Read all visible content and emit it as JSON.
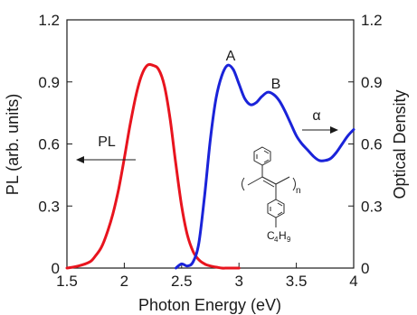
{
  "chart_data": {
    "type": "line",
    "xlabel": "Photon Energy (eV)",
    "ylabel_left": "PL (arb. units)",
    "ylabel_right": "Optical Density",
    "xlim": [
      1.5,
      4.0
    ],
    "ylim_left": [
      0,
      1.2
    ],
    "ylim_right": [
      0,
      1.2
    ],
    "x_ticks": [
      "1.5",
      "2",
      "2.5",
      "3",
      "3.5",
      "4"
    ],
    "x_tick_values": [
      1.5,
      2.0,
      2.5,
      3.0,
      3.5,
      4.0
    ],
    "y_ticks_left": [
      "0",
      "0.3",
      "0.6",
      "0.9",
      "1.2"
    ],
    "y_ticks_right": [
      "0",
      "0.3",
      "0.6",
      "0.9",
      "1.2"
    ],
    "y_tick_values": [
      0,
      0.3,
      0.6,
      0.9,
      1.2
    ],
    "grid": false,
    "series": [
      {
        "name": "PL",
        "axis": "left",
        "color": "#e8141e",
        "x": [
          1.5,
          1.6,
          1.7,
          1.75,
          1.8,
          1.85,
          1.9,
          1.95,
          2.0,
          2.05,
          2.1,
          2.15,
          2.2,
          2.25,
          2.3,
          2.35,
          2.4,
          2.45,
          2.5,
          2.55,
          2.6,
          2.65,
          2.7,
          2.75,
          2.8,
          2.85,
          2.9,
          2.95,
          3.0
        ],
        "y": [
          0.0,
          0.01,
          0.03,
          0.06,
          0.1,
          0.17,
          0.26,
          0.38,
          0.53,
          0.69,
          0.83,
          0.93,
          0.98,
          0.98,
          0.96,
          0.88,
          0.72,
          0.5,
          0.3,
          0.16,
          0.08,
          0.04,
          0.02,
          0.01,
          0.005,
          0.0,
          0.0,
          0.0,
          0.0
        ]
      },
      {
        "name": "Optical Density",
        "axis": "right",
        "color": "#1a23d9",
        "x": [
          2.45,
          2.5,
          2.55,
          2.6,
          2.65,
          2.7,
          2.75,
          2.8,
          2.85,
          2.9,
          2.95,
          3.0,
          3.05,
          3.1,
          3.15,
          3.2,
          3.25,
          3.3,
          3.35,
          3.4,
          3.45,
          3.5,
          3.55,
          3.6,
          3.65,
          3.7,
          3.75,
          3.8,
          3.85,
          3.9,
          3.95,
          4.0
        ],
        "y": [
          0.0,
          0.02,
          0.01,
          0.03,
          0.12,
          0.35,
          0.62,
          0.82,
          0.93,
          0.98,
          0.96,
          0.89,
          0.82,
          0.79,
          0.8,
          0.83,
          0.85,
          0.84,
          0.81,
          0.76,
          0.7,
          0.64,
          0.6,
          0.57,
          0.54,
          0.52,
          0.52,
          0.53,
          0.56,
          0.6,
          0.64,
          0.67
        ]
      }
    ],
    "annotations": {
      "pl_label": "PL",
      "alpha_label": "α",
      "peak_a": "A",
      "peak_b": "B",
      "subscript_n": "n",
      "substituent_c": "C",
      "substituent_4": "4",
      "substituent_h": "H",
      "substituent_9": "9"
    }
  }
}
